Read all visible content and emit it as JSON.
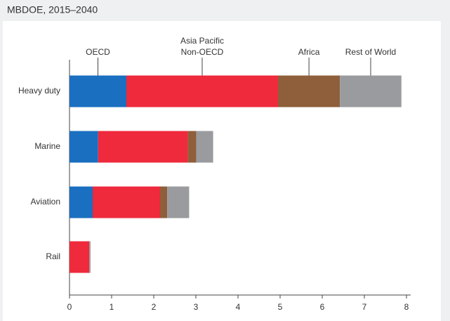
{
  "chart_data": {
    "type": "stacked-barh",
    "title": "MBDOE, 2015–2040",
    "categories": [
      "Heavy duty",
      "Marine",
      "Aviation",
      "Rail"
    ],
    "series": [
      {
        "name": "OECD",
        "color": "#1a6fc0",
        "values": [
          1.35,
          0.68,
          0.55,
          0
        ]
      },
      {
        "name": "Asia Pacific Non-OECD",
        "color": "#ee2a3c",
        "values": [
          3.6,
          2.13,
          1.6,
          0.47
        ]
      },
      {
        "name": "Africa",
        "color": "#8e5f3a",
        "values": [
          1.47,
          0.2,
          0.17,
          0
        ]
      },
      {
        "name": "Rest of World",
        "color": "#9a9b9e",
        "values": [
          1.46,
          0.4,
          0.52,
          0.03
        ]
      }
    ],
    "xlim": [
      0,
      8
    ],
    "xticks": [
      0,
      1,
      2,
      3,
      4,
      5,
      6,
      7,
      8
    ]
  }
}
